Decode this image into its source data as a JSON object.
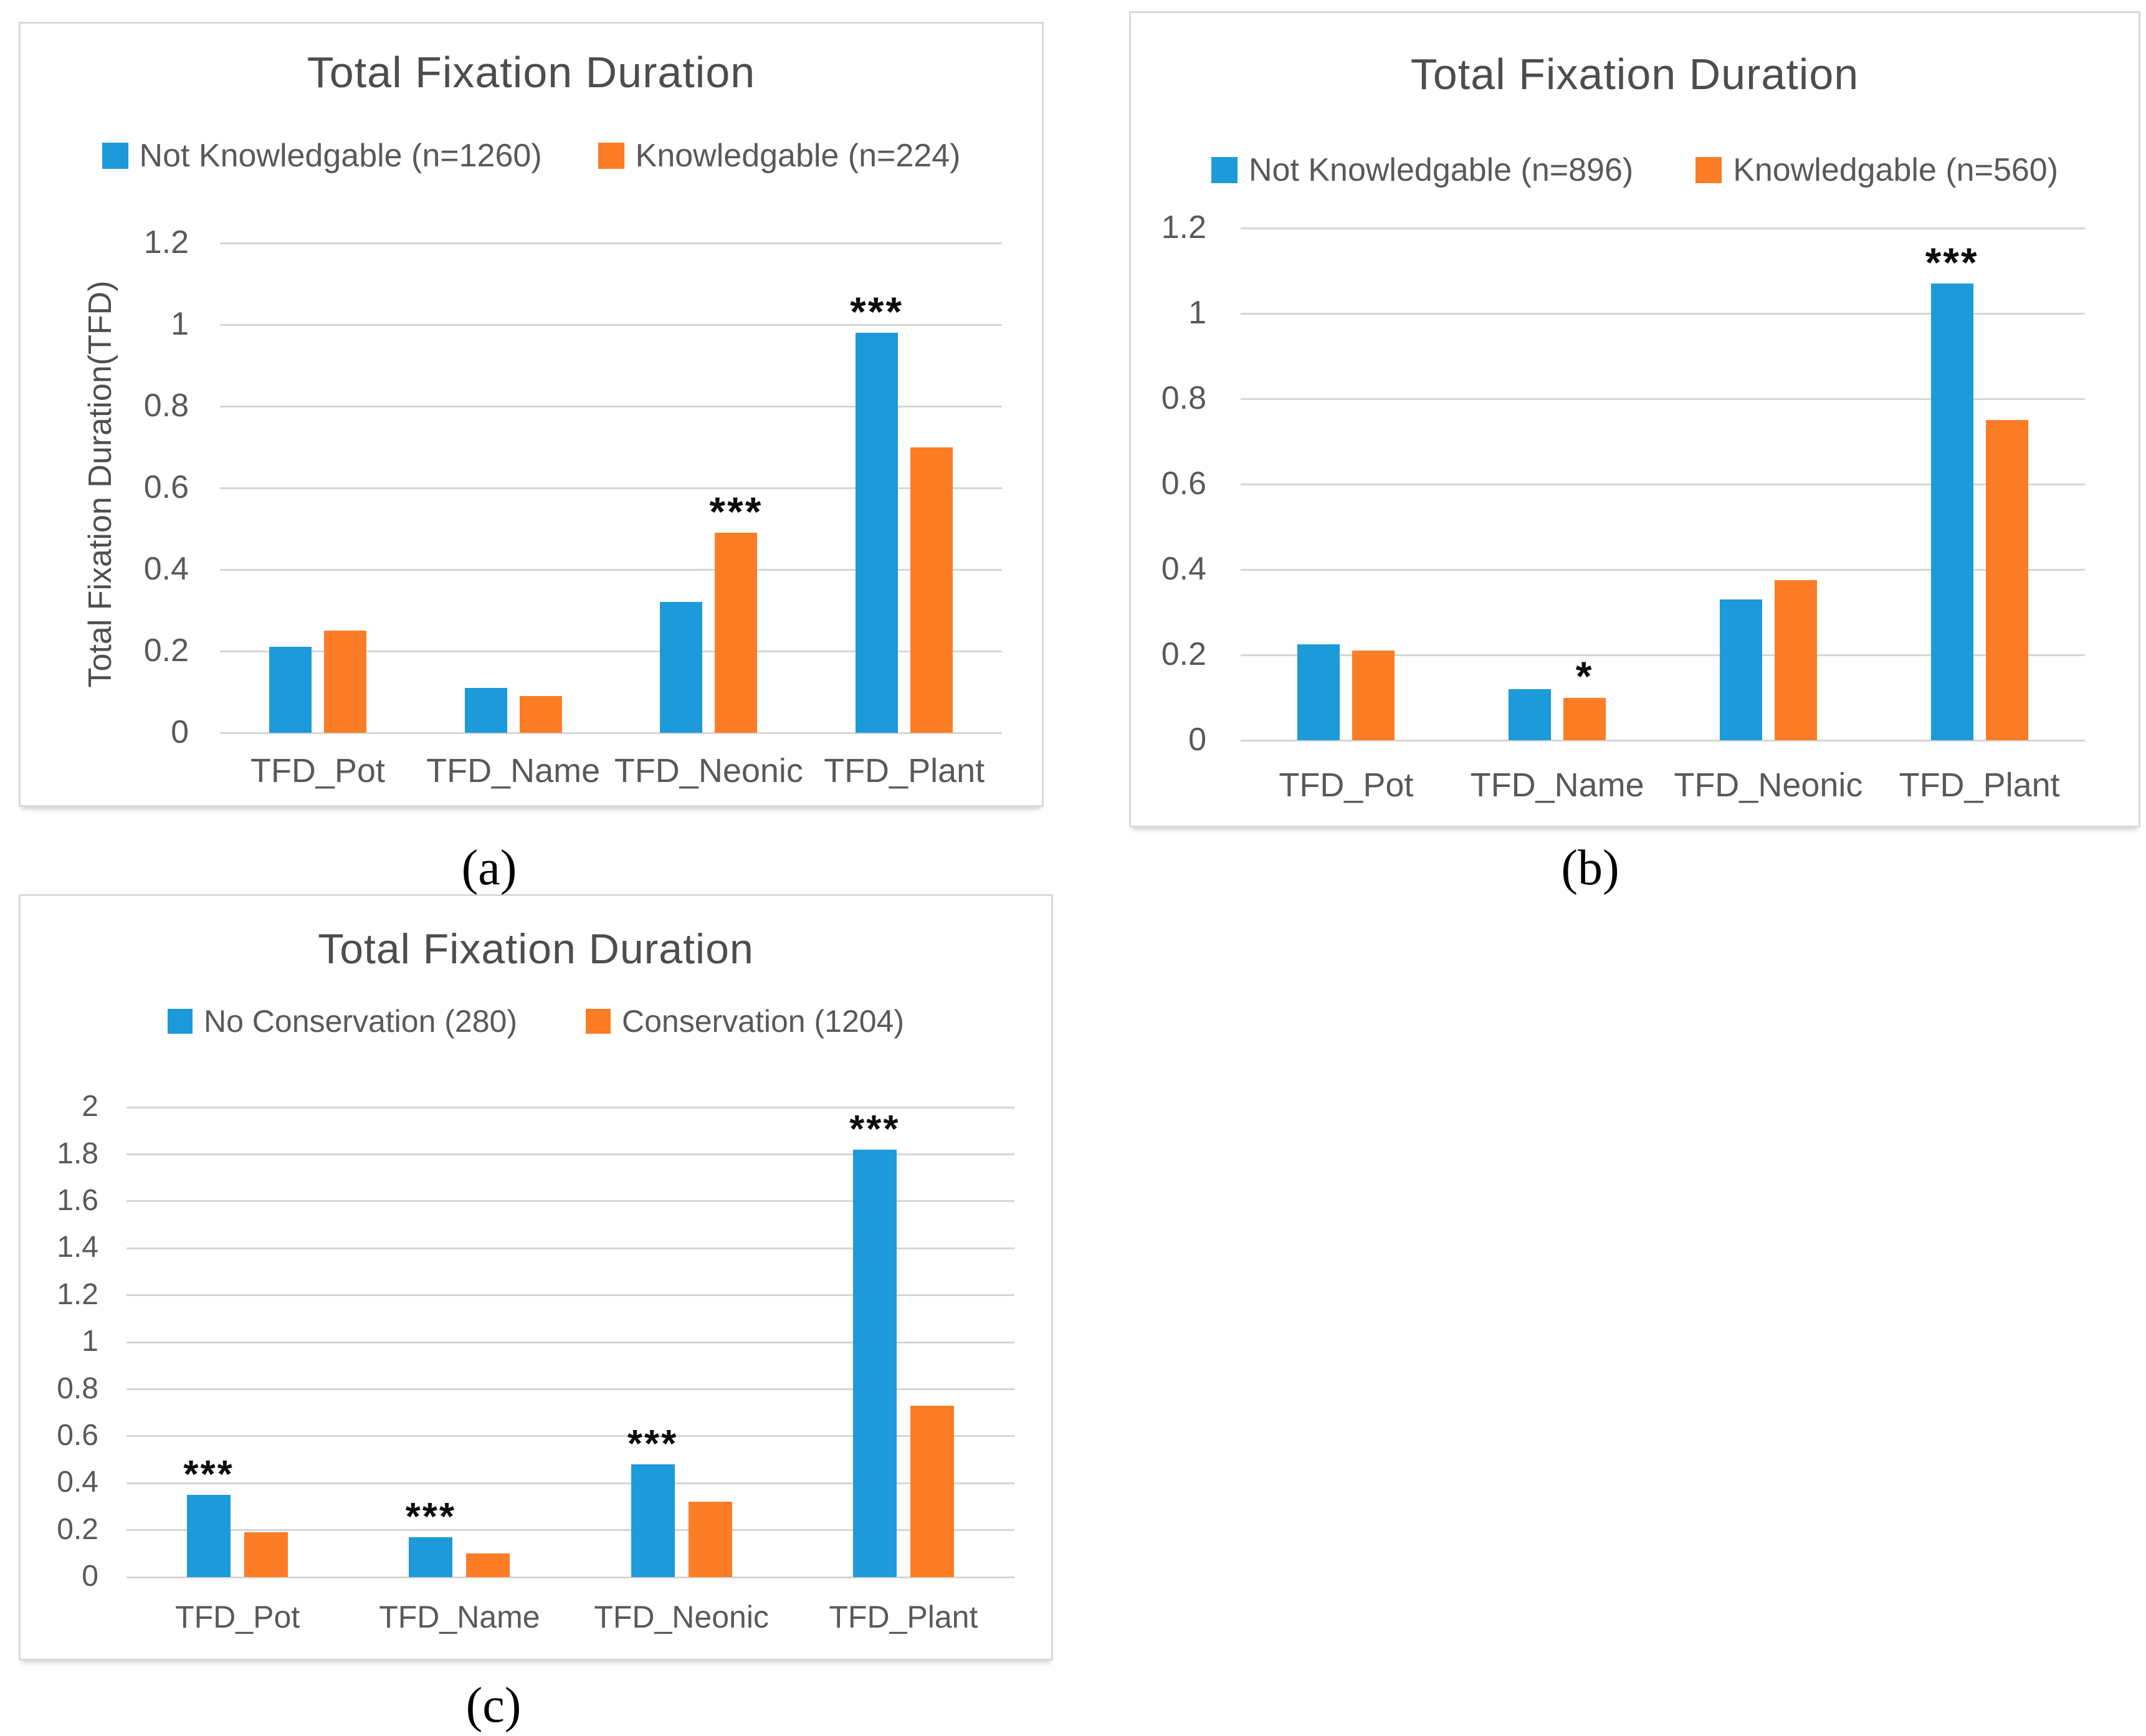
{
  "figure": {
    "background": "#ffffff",
    "colors": {
      "series_blue": "#1d9ad9",
      "series_orange": "#fc7d26",
      "gridline": "#d6d6d6",
      "axis_text": "#595959",
      "title_text": "#4d4d4d",
      "panel_border": "#d9d9d9",
      "significance_marker": "#0d0d0d"
    }
  },
  "captions": {
    "a": "(a)",
    "b": "(b)",
    "c": "(c)"
  },
  "chart_data": [
    {
      "type": "bar",
      "title": "Total Fixation Duration",
      "xlabel": "",
      "ylabel": "Total Fixation Duration(TFD)",
      "categories": [
        "TFD_Pot",
        "TFD_Name",
        "TFD_Neonic",
        "TFD_Plant"
      ],
      "series": [
        {
          "name": "Not Knowledgable (n=1260)",
          "color": "#1d9ad9",
          "values": [
            0.21,
            0.11,
            0.32,
            0.98
          ]
        },
        {
          "name": "Knowledgable (n=224)",
          "color": "#fc7d26",
          "values": [
            0.25,
            0.09,
            0.49,
            0.7
          ]
        }
      ],
      "ylim": [
        0,
        1.2
      ],
      "ytick_labels": [
        "0",
        "0.2",
        "0.4",
        "0.6",
        "0.8",
        "1",
        "1.2"
      ],
      "grid": true,
      "legend_position": "top",
      "significance": [
        {
          "category": "TFD_Neonic",
          "marker": "***",
          "over_series": 1
        },
        {
          "category": "TFD_Plant",
          "marker": "***",
          "over_series": 0
        }
      ]
    },
    {
      "type": "bar",
      "title": "Total Fixation Duration",
      "xlabel": "",
      "ylabel": "",
      "categories": [
        "TFD_Pot",
        "TFD_Name",
        "TFD_Neonic",
        "TFD_Plant"
      ],
      "series": [
        {
          "name": "Not Knowledgable (n=896)",
          "color": "#1d9ad9",
          "values": [
            0.225,
            0.12,
            0.33,
            1.07
          ]
        },
        {
          "name": "Knowledgable (n=560)",
          "color": "#fc7d26",
          "values": [
            0.21,
            0.1,
            0.375,
            0.75
          ]
        }
      ],
      "ylim": [
        0,
        1.2
      ],
      "ytick_labels": [
        "0",
        "0.2",
        "0.4",
        "0.6",
        "0.8",
        "1",
        "1.2"
      ],
      "grid": true,
      "legend_position": "top",
      "significance": [
        {
          "category": "TFD_Name",
          "marker": "*",
          "over_series": 1
        },
        {
          "category": "TFD_Plant",
          "marker": "***",
          "over_series": 0
        }
      ]
    },
    {
      "type": "bar",
      "title": "Total Fixation Duration",
      "xlabel": "",
      "ylabel": "",
      "categories": [
        "TFD_Pot",
        "TFD_Name",
        "TFD_Neonic",
        "TFD_Plant"
      ],
      "series": [
        {
          "name": "No Conservation (280)",
          "color": "#1d9ad9",
          "values": [
            0.35,
            0.17,
            0.48,
            1.82
          ]
        },
        {
          "name": "Conservation (1204)",
          "color": "#fc7d26",
          "values": [
            0.19,
            0.1,
            0.32,
            0.73
          ]
        }
      ],
      "ylim": [
        0,
        2
      ],
      "ytick_labels": [
        "0",
        "0.2",
        "0.4",
        "0.6",
        "0.8",
        "1",
        "1.2",
        "1.4",
        "1.6",
        "1.8",
        "2"
      ],
      "grid": true,
      "legend_position": "top",
      "significance": [
        {
          "category": "TFD_Pot",
          "marker": "***",
          "over_series": 0
        },
        {
          "category": "TFD_Name",
          "marker": "***",
          "over_series": 0
        },
        {
          "category": "TFD_Neonic",
          "marker": "***",
          "over_series": 0
        },
        {
          "category": "TFD_Plant",
          "marker": "***",
          "over_series": 0
        }
      ]
    }
  ]
}
